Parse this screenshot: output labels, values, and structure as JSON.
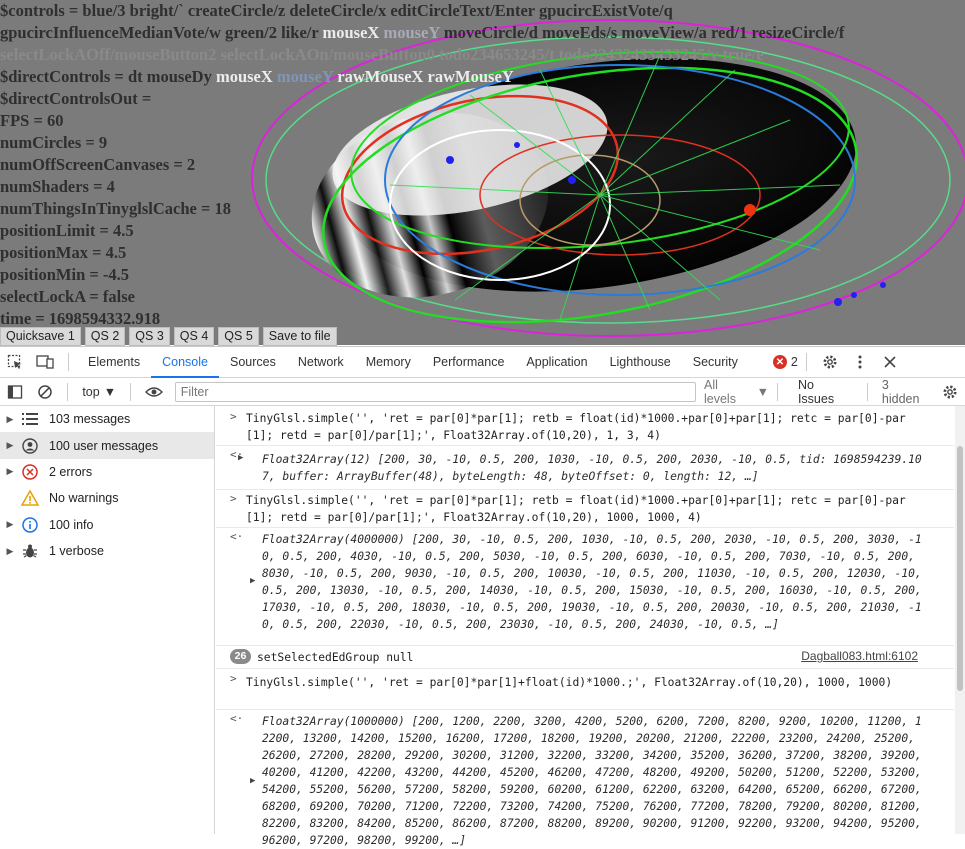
{
  "overlay": {
    "line1_a": "$controls = blue/3 bright/` createCircle/z deleteCircle/x editCircleText/Enter gpucircExistVote/q",
    "line2_a": "gpucircInfluenceMedianVote/w green/2 like/r ",
    "line2_b": "mouseX",
    "line2_c": " mouseY",
    "line2_d": " moveCircle/d moveEds/s moveView/a red/1 resizeCircle/f",
    "line3_a": "selectLockAOff/mouseButton2 selectLockAOn/mouseButton0 todo234653245/t todo32432433453245/v true/e",
    "line4_a": "$directControls = dt mouseDy ",
    "line4_b": "mouseX",
    "line4_c": " mouseY",
    "line4_d": " rawMouseX rawMouseY",
    "line5": "$directControlsOut =",
    "line6": "FPS = 60",
    "line7": "numCircles = 9",
    "line8": "numOffScreenCanvases = 2",
    "line9": "numShaders = 4",
    "line10": "numThingsInTinyglslCache = 18",
    "line11": "positionLimit = 4.5",
    "line12": "positionMax = 4.5",
    "line13": "positionMin = -4.5",
    "line14": "selectLockA = false",
    "line15": "time = 1698594332.918"
  },
  "quicksave": [
    "Quicksave 1",
    "QS 2",
    "QS 3",
    "QS 4",
    "QS 5",
    "Save to file"
  ],
  "tabs": [
    "Elements",
    "Console",
    "Sources",
    "Network",
    "Memory",
    "Performance",
    "Application",
    "Lighthouse",
    "Security"
  ],
  "active_tab": "Console",
  "error_count": "2",
  "toolbar": {
    "context": "top",
    "filter_placeholder": "Filter",
    "levels": "All levels",
    "issues": "No Issues",
    "hidden": "3 hidden"
  },
  "sidebar": [
    {
      "label": "103 messages",
      "icon": "list-icon"
    },
    {
      "label": "100 user messages",
      "icon": "user-icon"
    },
    {
      "label": "2 errors",
      "icon": "error-icon"
    },
    {
      "label": "No warnings",
      "icon": "warning-icon"
    },
    {
      "label": "100 info",
      "icon": "info-icon"
    },
    {
      "label": "1 verbose",
      "icon": "bug-icon"
    }
  ],
  "console": {
    "cmd1": "TinyGlsl.simple('', 'ret = par[0]*par[1]; retb = float(id)*1000.+par[0]+par[1]; retc = par[0]-par[1]; retd = par[0]/par[1];', Float32Array.of(10,20), 1, 3, 4)",
    "res1": "Float32Array(12) [200, 30, -10, 0.5, 200, 1030, -10, 0.5, 200, 2030, -10, 0.5, tid: 1698594239.107, buffer: ArrayBuffer(48), byteLength: 48, byteOffset: 0, length: 12, …]",
    "cmd2": "TinyGlsl.simple('', 'ret = par[0]*par[1]; retb = float(id)*1000.+par[0]+par[1]; retc = par[0]-par[1]; retd = par[0]/par[1];', Float32Array.of(10,20), 1000, 1000, 4)",
    "res2": "Float32Array(4000000) [200, 30, -10, 0.5, 200, 1030, -10, 0.5, 200, 2030, -10, 0.5, 200, 3030, -10, 0.5, 200, 4030, -10, 0.5, 200, 5030, -10, 0.5, 200, 6030, -10, 0.5, 200, 7030, -10, 0.5, 200, 8030, -10, 0.5, 200, 9030, -10, 0.5, 200, 10030, -10, 0.5, 200, 11030, -10, 0.5, 200, 12030, -10, 0.5, 200, 13030, -10, 0.5, 200, 14030, -10, 0.5, 200, 15030, -10, 0.5, 200, 16030, -10, 0.5, 200, 17030, -10, 0.5, 200, 18030, -10, 0.5, 200, 19030, -10, 0.5, 200, 20030, -10, 0.5, 200, 21030, -10, 0.5, 200, 22030, -10, 0.5, 200, 23030, -10, 0.5, 200, 24030, -10, 0.5, …]",
    "log_count": "26",
    "log_text": "setSelectedEdGroup null",
    "log_source": "Dagball083.html:6102",
    "cmd3": "TinyGlsl.simple('', 'ret = par[0]*par[1]+float(id)*1000.;', Float32Array.of(10,20), 1000, 1000)",
    "res3": "Float32Array(1000000) [200, 1200, 2200, 3200, 4200, 5200, 6200, 7200, 8200, 9200, 10200, 11200, 12200, 13200, 14200, 15200, 16200, 17200, 18200, 19200, 20200, 21200, 22200, 23200, 24200, 25200, 26200, 27200, 28200, 29200, 30200, 31200, 32200, 33200, 34200, 35200, 36200, 37200, 38200, 39200, 40200, 41200, 42200, 43200, 44200, 45200, 46200, 47200, 48200, 49200, 50200, 51200, 52200, 53200, 54200, 55200, 56200, 57200, 58200, 59200, 60200, 61200, 62200, 63200, 64200, 65200, 66200, 67200, 68200, 69200, 70200, 71200, 72200, 73200, 74200, 75200, 76200, 77200, 78200, 79200, 80200, 81200, 82200, 83200, 84200, 85200, 86200, 87200, 88200, 89200, 90200, 91200, 92200, 93200, 94200, 95200, 96200, 97200, 98200, 99200, …]"
  },
  "colors": {
    "canvas_bg": "#7b7b7b",
    "accent": "#1a73e8",
    "error": "#d93025",
    "warning": "#e8a200",
    "green_ring": "#22dd22",
    "magenta_ring": "#dd22dd",
    "blue_ring": "#2a7bdb",
    "red_ring": "#e03020"
  }
}
